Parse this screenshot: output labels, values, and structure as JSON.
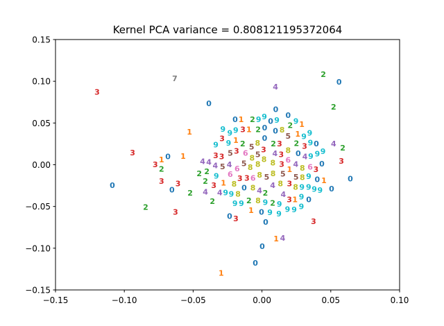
{
  "chart_data": {
    "type": "scatter",
    "title": "Kernel PCA variance = 0.808121195372064",
    "xlabel": "",
    "ylabel": "",
    "xlim": [
      -0.15,
      0.1
    ],
    "ylim": [
      -0.15,
      0.15
    ],
    "xticks": [
      "−0.15",
      "−0.10",
      "−0.05",
      "0.00",
      "0.05",
      "0.10"
    ],
    "xtick_values": [
      -0.15,
      -0.1,
      -0.05,
      0.0,
      0.05,
      0.1
    ],
    "yticks": [
      "−0.15",
      "−0.10",
      "−0.05",
      "0.00",
      "0.05",
      "0.10",
      "0.15"
    ],
    "ytick_values": [
      -0.15,
      -0.1,
      -0.05,
      0.0,
      0.05,
      0.1,
      0.15
    ],
    "grid": false,
    "marker": "digit label text",
    "label_colors": {
      "0": "#1f77b4",
      "1": "#ff7f0e",
      "2": "#2ca02c",
      "3": "#d62728",
      "4": "#9467bd",
      "5": "#8c564b",
      "6": "#e377c2",
      "7": "#7f7f7f",
      "8": "#bcbd22",
      "9": "#17becf"
    },
    "points": [
      [
        -0.0633,
        0.103,
        "7"
      ],
      [
        -0.1198,
        0.087,
        "3"
      ],
      [
        0.0446,
        0.108,
        "2"
      ],
      [
        0.056,
        0.099,
        "0"
      ],
      [
        0.0098,
        0.093,
        "4"
      ],
      [
        -0.0386,
        0.073,
        "0"
      ],
      [
        0.052,
        0.069,
        "2"
      ],
      [
        0.01,
        0.066,
        "0"
      ],
      [
        0.019,
        0.059,
        "0"
      ],
      [
        -0.0195,
        0.054,
        "0"
      ],
      [
        -0.0174,
        0.054,
        "1"
      ],
      [
        -0.0069,
        0.054,
        "2"
      ],
      [
        0.0063,
        0.052,
        "0"
      ],
      [
        0.02,
        0.048,
        "2"
      ],
      [
        0.029,
        0.048,
        "1"
      ],
      [
        -0.0139,
        0.042,
        "3"
      ],
      [
        -0.011,
        0.042,
        "1"
      ],
      [
        -0.0028,
        0.042,
        "2"
      ],
      [
        0.0012,
        0.044,
        "0"
      ],
      [
        0.0093,
        0.041,
        "0"
      ],
      [
        -0.0527,
        0.039,
        "1"
      ],
      [
        0.026,
        0.038,
        "1"
      ],
      [
        0.0002,
        0.034,
        "0"
      ],
      [
        -0.029,
        0.031,
        "3"
      ],
      [
        -0.019,
        0.029,
        "1"
      ],
      [
        0.024,
        0.027,
        "2"
      ],
      [
        -0.014,
        0.025,
        "2"
      ],
      [
        0.019,
        0.034,
        "5"
      ],
      [
        0.0083,
        0.025,
        "2"
      ],
      [
        0.012,
        0.025,
        "3"
      ],
      [
        0.0395,
        0.025,
        "0"
      ],
      [
        0.031,
        0.022,
        "3"
      ],
      [
        0.029,
        0.021,
        "0"
      ],
      [
        0.052,
        0.025,
        "4"
      ],
      [
        0.0587,
        0.02,
        "2"
      ],
      [
        0.028,
        0.018,
        "4"
      ],
      [
        -0.094,
        0.014,
        "3"
      ],
      [
        -0.0573,
        0.01,
        "1"
      ],
      [
        -0.0336,
        0.011,
        "3"
      ],
      [
        -0.073,
        0.006,
        "1"
      ],
      [
        -0.077,
        0.001,
        "3"
      ],
      [
        -0.073,
        -0.003,
        "2"
      ],
      [
        -0.0683,
        0.0096,
        "0"
      ],
      [
        0.0577,
        0.004,
        "3"
      ],
      [
        0.0435,
        0.001,
        "0"
      ],
      [
        0.04,
        -0.006,
        "3"
      ],
      [
        0.039,
        -0.012,
        "0"
      ],
      [
        0.0642,
        -0.017,
        "0"
      ],
      [
        0.0506,
        -0.029,
        "0"
      ],
      [
        -0.1087,
        -0.025,
        "0"
      ],
      [
        -0.073,
        -0.02,
        "3"
      ],
      [
        -0.061,
        -0.023,
        "3"
      ],
      [
        -0.0633,
        -0.029,
        "0"
      ],
      [
        -0.0522,
        -0.034,
        "2"
      ],
      [
        -0.0411,
        -0.033,
        "4"
      ],
      [
        -0.035,
        -0.025,
        "3"
      ],
      [
        -0.0845,
        -0.051,
        "2"
      ],
      [
        -0.036,
        -0.044,
        "2"
      ],
      [
        -0.0628,
        -0.057,
        "3"
      ],
      [
        -0.028,
        -0.022,
        "1"
      ],
      [
        -0.0235,
        -0.062,
        "0"
      ],
      [
        -0.0205,
        -0.065,
        "3"
      ],
      [
        -0.0079,
        -0.055,
        "1"
      ],
      [
        -0.0089,
        -0.044,
        "2"
      ],
      [
        -0.0003,
        -0.057,
        "0"
      ],
      [
        0.0027,
        -0.069,
        "0"
      ],
      [
        0.0078,
        -0.046,
        "2"
      ],
      [
        0.024,
        -0.042,
        "1"
      ],
      [
        0.0214,
        -0.042,
        "3"
      ],
      [
        0.034,
        -0.042,
        "0"
      ],
      [
        0.0375,
        -0.068,
        "3"
      ],
      [
        0.0103,
        -0.089,
        "1"
      ],
      [
        0.012,
        -0.088,
        "4"
      ],
      [
        0.0002,
        -0.098,
        "0"
      ],
      [
        -0.0048,
        -0.118,
        "0"
      ],
      [
        -0.0296,
        -0.13,
        "1"
      ],
      [
        0.016,
        -0.035,
        "4"
      ],
      [
        0.042,
        -0.019,
        "1"
      ],
      [
        0.02,
        -0.023,
        "3"
      ],
      [
        0.02,
        -0.006,
        "1"
      ],
      [
        0.0078,
        -0.025,
        "4"
      ],
      [
        -0.0129,
        -0.028,
        "0"
      ],
      [
        -0.0018,
        -0.031,
        "4"
      ],
      [
        0.0002,
        -0.034,
        "2"
      ],
      [
        -0.031,
        -0.025,
        "4"
      ],
      [
        -0.0411,
        -0.02,
        "2"
      ],
      [
        -0.045,
        -0.01,
        "2"
      ],
      [
        -0.04,
        -0.011,
        "2"
      ],
      [
        -0.0386,
        0.0004,
        "4"
      ],
      [
        -0.035,
        0.0004,
        "4"
      ],
      [
        -0.041,
        0.005,
        "4"
      ],
      [
        -0.03,
        0.0096,
        "3"
      ],
      [
        -0.0185,
        0.016,
        "3"
      ],
      [
        -0.0225,
        0.0145,
        "5"
      ],
      [
        -0.012,
        0.015,
        "6"
      ],
      [
        -0.029,
        0.001,
        "5"
      ],
      [
        -0.029,
        0.0,
        "4"
      ],
      [
        -0.018,
        -0.005,
        "6"
      ],
      [
        0.0365,
        -0.003,
        "6"
      ],
      [
        0.019,
        0.003,
        "6"
      ],
      [
        0.024,
        -0.015,
        "5"
      ],
      [
        -0.009,
        0.021,
        "5"
      ],
      [
        0.0012,
        0.018,
        "3"
      ],
      [
        -0.016,
        -0.014,
        "3"
      ],
      [
        -0.012,
        -0.018,
        "3"
      ],
      [
        0.014,
        0.012,
        "3"
      ],
      [
        0.017,
        0.008,
        "3"
      ],
      [
        -0.02,
        0.006,
        "5"
      ],
      [
        0.016,
        -0.004,
        "5"
      ],
      [
        -0.008,
        -0.016,
        "6"
      ],
      [
        0.004,
        -0.014,
        "5"
      ],
      [
        0.01,
        0.014,
        "4"
      ],
      [
        -0.022,
        -0.01,
        "6"
      ],
      [
        0.022,
        0.005,
        "4"
      ],
      [
        -0.003,
        0.012,
        "5"
      ],
      [
        -0.014,
        0.008,
        "8"
      ],
      [
        -0.012,
        -0.006,
        "8"
      ],
      [
        -0.01,
        0.01,
        "8"
      ],
      [
        -0.006,
        -0.01,
        "8"
      ],
      [
        -0.002,
        0.011,
        "8"
      ],
      [
        0.002,
        -0.011,
        "8"
      ],
      [
        0.006,
        0.01,
        "8"
      ],
      [
        0.01,
        -0.009,
        "8"
      ],
      [
        0.013,
        0.006,
        "8"
      ],
      [
        0.015,
        -0.004,
        "8"
      ],
      [
        -0.015,
        0.0,
        "8"
      ],
      [
        0.016,
        0.001,
        "8"
      ],
      [
        -0.008,
        0.006,
        "8"
      ],
      [
        0.008,
        -0.006,
        "8"
      ],
      [
        -0.004,
        -0.007,
        "8"
      ],
      [
        0.004,
        0.007,
        "8"
      ],
      [
        -0.011,
        -0.002,
        "8"
      ],
      [
        0.011,
        0.003,
        "8"
      ],
      [
        -0.01,
        0.0,
        "9"
      ],
      [
        -0.008,
        -0.003,
        "9"
      ],
      [
        -0.008,
        0.0,
        "9"
      ],
      [
        -0.008,
        0.003,
        "9"
      ],
      [
        -0.006,
        -0.003,
        "9"
      ],
      [
        -0.006,
        0.0,
        "9"
      ],
      [
        -0.006,
        0.003,
        "9"
      ],
      [
        -0.004,
        -0.003,
        "9"
      ],
      [
        -0.004,
        0.0,
        "9"
      ],
      [
        -0.004,
        0.003,
        "9"
      ],
      [
        -0.002,
        -0.003,
        "9"
      ],
      [
        -0.002,
        0.0,
        "9"
      ],
      [
        -0.002,
        0.003,
        "9"
      ],
      [
        0.0,
        -0.003,
        "9"
      ],
      [
        0.0,
        0.0,
        "9"
      ],
      [
        0.0,
        0.003,
        "9"
      ],
      [
        0.002,
        -0.003,
        "9"
      ],
      [
        0.002,
        0.0,
        "9"
      ],
      [
        0.002,
        0.003,
        "9"
      ],
      [
        0.004,
        -0.003,
        "9"
      ],
      [
        0.004,
        0.0,
        "9"
      ],
      [
        0.004,
        0.003,
        "9"
      ],
      [
        0.006,
        -0.003,
        "9"
      ],
      [
        0.006,
        0.0,
        "9"
      ],
      [
        0.006,
        0.003,
        "9"
      ],
      [
        0.008,
        -0.003,
        "9"
      ],
      [
        0.008,
        0.0,
        "9"
      ],
      [
        0.008,
        0.003,
        "9"
      ],
      [
        0.01,
        -0.002,
        "9"
      ],
      [
        0.01,
        0.001,
        "9"
      ],
      [
        0.012,
        0.0,
        "9"
      ],
      [
        -0.005,
        0.005,
        "9"
      ],
      [
        0.003,
        -0.005,
        "9"
      ]
    ]
  }
}
